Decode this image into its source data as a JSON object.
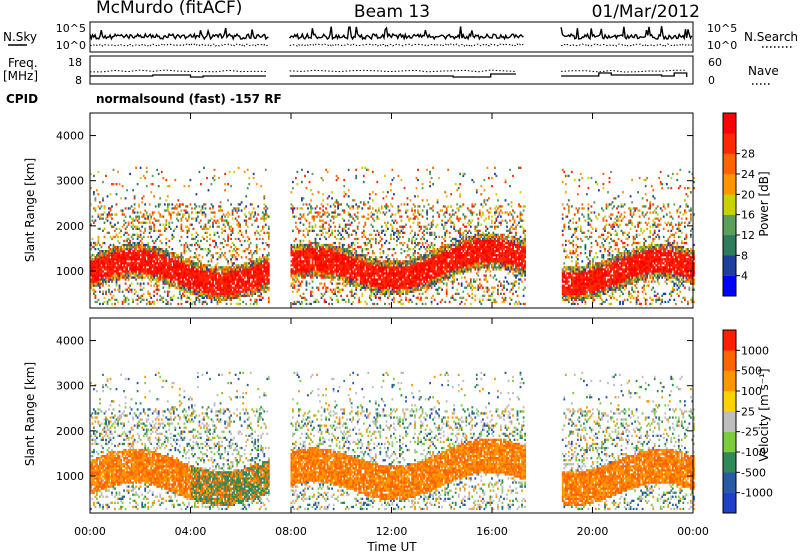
{
  "header": {
    "station": "McMurdo (fitACF)",
    "beam": "Beam 13",
    "date": "01/Mar/2012"
  },
  "noise_panel": {
    "left_label": "N.Sky",
    "right_label": "N.Search",
    "ticks_left": [
      "10^5",
      "10^0"
    ],
    "ticks_right": [
      "10^5",
      "10^0"
    ]
  },
  "freq_panel": {
    "left_label_1": "Freq.",
    "left_label_2": "[MHz]",
    "right_label": "Nave",
    "ticks_left": [
      "18",
      "8"
    ],
    "ticks_right": [
      "60",
      "0"
    ]
  },
  "cpid": {
    "label": "CPID",
    "text": "normalsound (fast) -157 RF"
  },
  "colors": {
    "power_scale": [
      "#0000ff",
      "#1e3fa0",
      "#2e7d5a",
      "#5aa05a",
      "#c8d200",
      "#ff9600",
      "#ff6400",
      "#ff2800",
      "#ff0000"
    ],
    "velocity_scale": [
      "#1e3fc8",
      "#2858a8",
      "#2e8b57",
      "#7ccd3c",
      "#bebebe",
      "#ffd200",
      "#ff9600",
      "#ff6400",
      "#ff1e00"
    ]
  },
  "chart_data": [
    {
      "type": "heatmap",
      "title": "Power",
      "ylabel": "Slant Range [km]",
      "xlabel": "",
      "x_ticks": [
        "00:00",
        "04:00",
        "08:00",
        "12:00",
        "16:00",
        "20:00",
        "00:00"
      ],
      "y_ticks": [
        "1000",
        "2000",
        "3000",
        "4000"
      ],
      "ylim": [
        180,
        4500
      ],
      "xlim_hours": [
        0,
        24
      ],
      "data_gaps_hours": [
        [
          7.1,
          7.95
        ],
        [
          17.3,
          18.75
        ]
      ],
      "colorbar": {
        "label": "Power [dB]",
        "ticks": [
          "4",
          "8",
          "12",
          "16",
          "20",
          "24",
          "28"
        ]
      }
    },
    {
      "type": "heatmap",
      "title": "Velocity",
      "ylabel": "Slant Range [km]",
      "xlabel": "Time UT",
      "x_ticks": [
        "00:00",
        "04:00",
        "08:00",
        "12:00",
        "16:00",
        "20:00",
        "00:00"
      ],
      "y_ticks": [
        "1000",
        "2000",
        "3000",
        "4000"
      ],
      "ylim": [
        180,
        4500
      ],
      "xlim_hours": [
        0,
        24
      ],
      "data_gaps_hours": [
        [
          7.1,
          7.95
        ],
        [
          17.3,
          18.75
        ]
      ],
      "colorbar": {
        "label": "Velocity [m s⁻¹]",
        "ticks": [
          "1000",
          "500",
          "100",
          "25",
          "-25",
          "-100",
          "-500",
          "-1000"
        ]
      }
    }
  ]
}
